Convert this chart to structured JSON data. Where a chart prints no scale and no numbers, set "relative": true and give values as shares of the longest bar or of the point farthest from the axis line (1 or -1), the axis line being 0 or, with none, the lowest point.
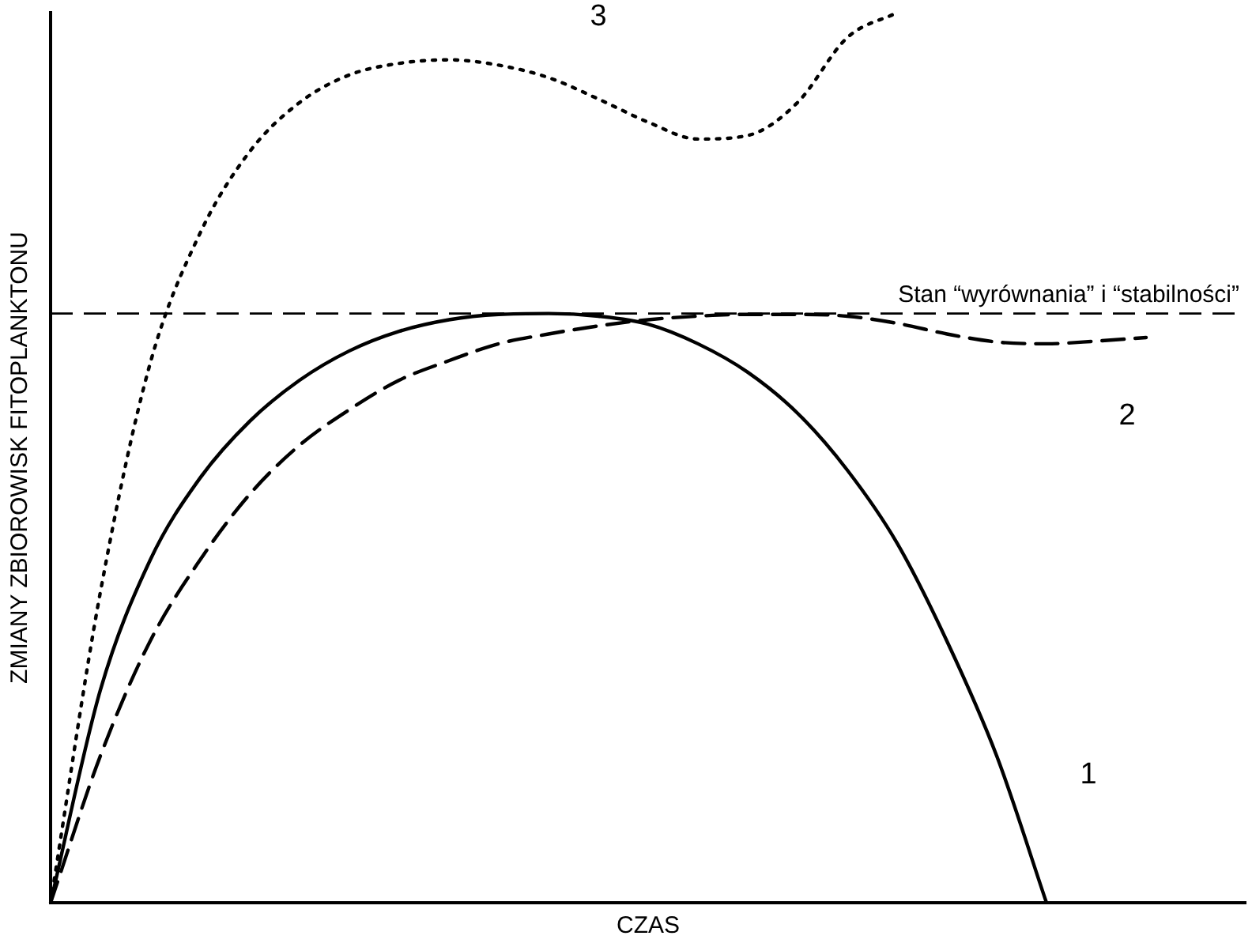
{
  "chart_data": {
    "type": "line",
    "relative": true,
    "xlabel": "CZAS",
    "ylabel": "ZMIANY ZBIOROWISK FITOPLANKTONU",
    "legend": false,
    "grid": false,
    "tick_labels": false,
    "marker": "none",
    "categories": [
      null,
      null,
      null,
      null,
      null,
      null,
      null,
      null,
      null,
      null,
      null,
      null,
      null,
      null,
      null,
      null,
      null,
      null,
      null,
      null,
      null,
      null,
      null,
      null,
      null
    ],
    "series": [
      {
        "name": "1",
        "color": "#000000",
        "line_style": "solid",
        "values": [
          0,
          0.239,
          0.385,
          0.477,
          0.541,
          0.587,
          0.62,
          0.642,
          0.655,
          0.661,
          0.662,
          0.659,
          0.65,
          0.628,
          0.596,
          0.55,
          0.486,
          0.404,
          0.294,
          0.165,
          0,
          null,
          null,
          null,
          null
        ]
      },
      {
        "name": "2",
        "color": "#000000",
        "line_style": "dashed",
        "values": [
          0,
          0.165,
          0.294,
          0.385,
          0.459,
          0.514,
          0.554,
          0.587,
          0.609,
          0.628,
          0.639,
          0.648,
          0.655,
          0.659,
          0.661,
          0.661,
          0.659,
          0.651,
          0.639,
          0.63,
          0.628,
          0.631,
          0.635,
          null,
          null
        ]
      },
      {
        "name": "3",
        "color": "#000000",
        "line_style": "dotted",
        "values": [
          0,
          0.349,
          0.606,
          0.752,
          0.844,
          0.899,
          0.93,
          0.943,
          0.947,
          0.941,
          0.927,
          0.903,
          0.877,
          0.858,
          0.862,
          0.899,
          0.972,
          1.0,
          null,
          null,
          null,
          null,
          null,
          null,
          null
        ]
      }
    ],
    "ref_lines": [
      {
        "axis": "y",
        "value": 0.662,
        "label": "Stan “wyrównania” i “stabilności”",
        "line_style": "dashed",
        "color": "#000000"
      }
    ]
  }
}
